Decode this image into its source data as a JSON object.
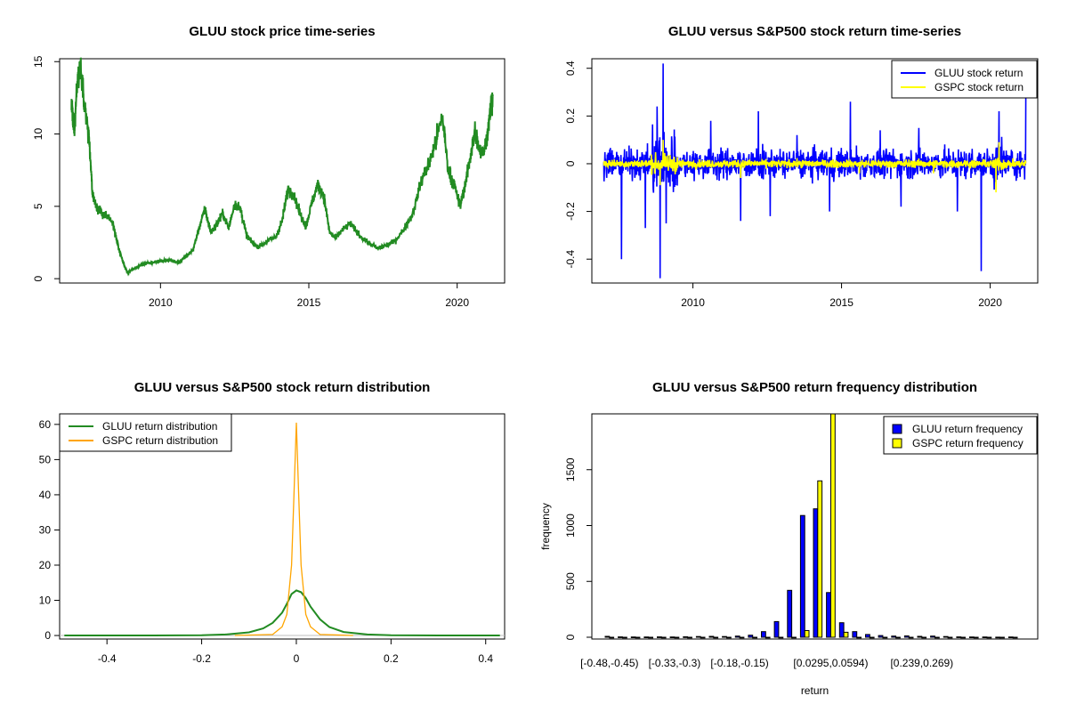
{
  "chart_data": [
    {
      "type": "line",
      "title": "GLUU stock price time-series",
      "xlabel": "",
      "ylabel": "",
      "xlim": [
        2006.6,
        2021.6
      ],
      "ylim": [
        -0.3,
        15.2
      ],
      "x_ticks": [
        2010,
        2015,
        2020
      ],
      "y_ticks": [
        0,
        5,
        10,
        15
      ],
      "series": [
        {
          "color": "#228b22",
          "x": [
            2007.0,
            2007.1,
            2007.2,
            2007.3,
            2007.45,
            2007.6,
            2007.7,
            2007.8,
            2007.9,
            2008.0,
            2008.2,
            2008.4,
            2008.6,
            2008.8,
            2008.9,
            2009.0,
            2009.3,
            2009.6,
            2010.0,
            2010.3,
            2010.6,
            2010.9,
            2011.1,
            2011.3,
            2011.5,
            2011.7,
            2011.9,
            2012.1,
            2012.3,
            2012.5,
            2012.7,
            2012.9,
            2013.1,
            2013.3,
            2013.6,
            2013.9,
            2014.1,
            2014.3,
            2014.5,
            2014.7,
            2014.9,
            2015.1,
            2015.3,
            2015.5,
            2015.7,
            2015.9,
            2016.1,
            2016.4,
            2016.7,
            2017.0,
            2017.3,
            2017.6,
            2017.9,
            2018.2,
            2018.5,
            2018.8,
            2019.1,
            2019.3,
            2019.5,
            2019.7,
            2019.9,
            2020.1,
            2020.3,
            2020.45,
            2020.6,
            2020.8,
            2021.0,
            2021.1,
            2021.2
          ],
          "y": [
            12.0,
            10.2,
            13.8,
            14.5,
            12.0,
            9.5,
            6.0,
            5.2,
            4.8,
            4.6,
            4.3,
            3.8,
            2.0,
            0.8,
            0.4,
            0.6,
            0.9,
            1.1,
            1.2,
            1.3,
            1.1,
            1.6,
            2.0,
            3.5,
            4.8,
            3.2,
            3.8,
            4.5,
            3.5,
            5.2,
            4.8,
            3.0,
            2.5,
            2.2,
            2.6,
            2.9,
            4.0,
            6.2,
            5.8,
            4.5,
            3.6,
            5.2,
            6.5,
            5.8,
            3.2,
            2.8,
            3.3,
            3.8,
            3.0,
            2.5,
            2.1,
            2.3,
            2.6,
            3.4,
            4.5,
            6.8,
            8.2,
            9.6,
            11.3,
            7.5,
            6.5,
            5.0,
            6.8,
            8.5,
            10.2,
            8.5,
            9.6,
            11.5,
            12.6
          ]
        }
      ]
    },
    {
      "type": "line",
      "title": "GLUU versus S&P500 stock return time-series",
      "xlabel": "",
      "ylabel": "",
      "xlim": [
        2006.6,
        2021.6
      ],
      "ylim": [
        -0.5,
        0.44
      ],
      "x_ticks": [
        2010,
        2015,
        2020
      ],
      "y_ticks": [
        -0.4,
        -0.2,
        0.0,
        0.2,
        0.4
      ],
      "legend_position": "top-right",
      "series": [
        {
          "name": "GLUU stock return",
          "color": "#0000ff",
          "x": [
            2007.2,
            2007.6,
            2008.4,
            2008.8,
            2008.9,
            2009.0,
            2009.1,
            2010.6,
            2011.6,
            2012.2,
            2012.6,
            2013.5,
            2014.6,
            2015.3,
            2016.3,
            2017.0,
            2017.6,
            2018.9,
            2019.7,
            2020.3,
            2021.2
          ],
          "y": [
            0.06,
            -0.4,
            -0.27,
            0.24,
            -0.48,
            0.42,
            -0.25,
            0.18,
            -0.24,
            0.22,
            -0.22,
            0.12,
            -0.2,
            0.26,
            0.14,
            -0.18,
            0.15,
            -0.2,
            -0.45,
            0.22,
            0.28
          ]
        },
        {
          "name": "GSPC stock return",
          "color": "#ffff00",
          "x": [
            2007.0,
            2008.9,
            2009.0,
            2011.6,
            2015.6,
            2018.1,
            2020.2,
            2020.3,
            2021.2
          ],
          "y": [
            0.01,
            -0.09,
            0.1,
            -0.06,
            -0.04,
            -0.04,
            -0.12,
            0.09,
            0.01
          ]
        }
      ]
    },
    {
      "type": "line",
      "title": "GLUU versus S&P500 stock return distribution",
      "xlabel": "",
      "ylabel": "",
      "xlim": [
        -0.5,
        0.44
      ],
      "ylim": [
        -1,
        63
      ],
      "x_ticks": [
        -0.4,
        -0.2,
        0.0,
        0.2,
        0.4
      ],
      "y_ticks": [
        0,
        10,
        20,
        30,
        40,
        50,
        60
      ],
      "legend_position": "top-left",
      "series": [
        {
          "name": "GLUU return distribution",
          "color": "#228b22",
          "x": [
            -0.49,
            -0.3,
            -0.2,
            -0.15,
            -0.1,
            -0.07,
            -0.05,
            -0.03,
            -0.02,
            -0.01,
            0.0,
            0.01,
            0.02,
            0.03,
            0.05,
            0.07,
            0.1,
            0.15,
            0.2,
            0.3,
            0.43
          ],
          "y": [
            0.0,
            0.0,
            0.1,
            0.3,
            0.9,
            2.0,
            3.6,
            6.5,
            9.0,
            11.8,
            12.8,
            12.3,
            10.6,
            8.2,
            4.6,
            2.4,
            1.0,
            0.3,
            0.1,
            0.0,
            0.0
          ]
        },
        {
          "name": "GSPC return distribution",
          "color": "#ffa500",
          "x": [
            -0.13,
            -0.05,
            -0.03,
            -0.02,
            -0.01,
            -0.005,
            0.0,
            0.005,
            0.01,
            0.02,
            0.03,
            0.05,
            0.12
          ],
          "y": [
            0.0,
            0.3,
            2.5,
            6.0,
            20.0,
            40.0,
            60.5,
            40.0,
            20.0,
            6.0,
            2.5,
            0.3,
            0.0
          ]
        }
      ]
    },
    {
      "type": "bar",
      "title": "GLUU versus S&P500 return frequency distribution",
      "xlabel": "return",
      "ylabel": "frequency",
      "ylim": [
        0,
        2000
      ],
      "y_ticks": [
        0,
        500,
        1000,
        1500
      ],
      "x_tick_labels": [
        "[-0.48,-0.45)",
        "[-0.33,-0.3)",
        "[-0.18,-0.15)",
        "[0.0295,0.0594)",
        "[0.239,0.269)"
      ],
      "x_tick_bins": [
        0,
        5,
        10,
        17,
        24
      ],
      "legend_position": "top-right",
      "series": [
        {
          "name": "GLUU return frequency",
          "color": "#0000ff",
          "values": [
            8,
            3,
            2,
            2,
            3,
            2,
            4,
            6,
            8,
            6,
            10,
            18,
            50,
            140,
            420,
            1090,
            1150,
            400,
            130,
            50,
            25,
            15,
            10,
            12,
            8,
            10,
            6,
            3,
            2,
            2,
            1,
            2
          ]
        },
        {
          "name": "GSPC return frequency",
          "color": "#ffff00",
          "values": [
            0,
            0,
            0,
            0,
            0,
            0,
            0,
            0,
            0,
            0,
            0,
            0,
            0,
            0,
            0,
            60,
            1400,
            2000,
            45,
            0,
            0,
            0,
            0,
            0,
            0,
            0,
            0,
            0,
            0,
            0,
            0,
            0
          ]
        }
      ]
    }
  ]
}
